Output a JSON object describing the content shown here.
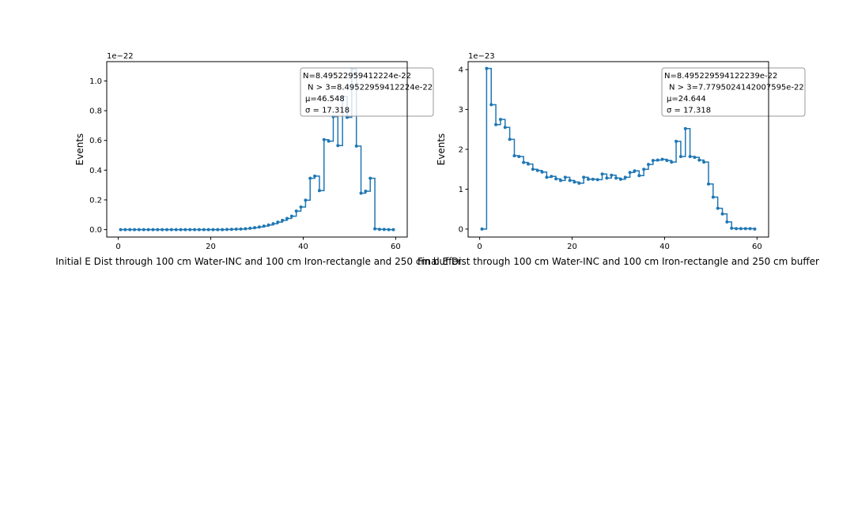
{
  "chart_data": [
    {
      "type": "line",
      "step": "post",
      "xlabel": "Initial E Dist through 100 cm Water-INC and 100 cm Iron-rectangle and 250 cm buffer",
      "ylabel": "Events",
      "offset_text": "1e−22",
      "xlim": [
        -2.5,
        62.5
      ],
      "ylim": [
        -0.05,
        1.13
      ],
      "xticks": [
        0,
        20,
        40,
        60
      ],
      "yticks": [
        0.0,
        0.2,
        0.4,
        0.6,
        0.8,
        1.0
      ],
      "ytick_labels": [
        "0.0",
        "0.2",
        "0.4",
        "0.6",
        "0.8",
        "1.0"
      ],
      "stats": [
        "N=8.49522959412224e-22",
        "N > 3=8.49522959412224e-22",
        "μ=46.548",
        "σ = 17.318"
      ],
      "color": "#1f77b4",
      "x": [
        0.5,
        1.5,
        2.5,
        3.5,
        4.5,
        5.5,
        6.5,
        7.5,
        8.5,
        9.5,
        10.5,
        11.5,
        12.5,
        13.5,
        14.5,
        15.5,
        16.5,
        17.5,
        18.5,
        19.5,
        20.5,
        21.5,
        22.5,
        23.5,
        24.5,
        25.5,
        26.5,
        27.5,
        28.5,
        29.5,
        30.5,
        31.5,
        32.5,
        33.5,
        34.5,
        35.5,
        36.5,
        37.5,
        38.5,
        39.5,
        40.5,
        41.5,
        42.5,
        43.5,
        44.5,
        45.5,
        46.5,
        47.5,
        48.5,
        49.5,
        50.5,
        51.5,
        52.5,
        53.5,
        54.5,
        55.5,
        56.5,
        57.5,
        58.5,
        59.5
      ],
      "values": [
        0,
        0,
        0,
        0,
        0,
        0,
        0,
        0,
        0,
        0,
        0,
        0,
        0,
        0,
        0,
        0,
        0,
        0,
        0,
        0,
        0,
        0,
        0,
        0.001,
        0.002,
        0.003,
        0.004,
        0.006,
        0.009,
        0.013,
        0.018,
        0.024,
        0.031,
        0.04,
        0.05,
        0.062,
        0.075,
        0.09,
        0.125,
        0.152,
        0.198,
        0.345,
        0.36,
        0.262,
        0.605,
        0.595,
        0.76,
        0.565,
        0.895,
        0.755,
        1.08,
        0.562,
        0.245,
        0.258,
        0.345,
        0.005,
        0.002,
        0.001,
        0,
        0
      ]
    },
    {
      "type": "line",
      "step": "post",
      "xlabel": "Final E Dist through 100 cm Water-INC and 100 cm Iron-rectangle and 250 cm buffer",
      "ylabel": "Events",
      "offset_text": "1e−23",
      "xlim": [
        -2.5,
        62.5
      ],
      "ylim": [
        -0.2,
        4.2
      ],
      "xticks": [
        0,
        20,
        40,
        60
      ],
      "yticks": [
        0,
        1,
        2,
        3,
        4
      ],
      "ytick_labels": [
        "0",
        "1",
        "2",
        "3",
        "4"
      ],
      "stats": [
        "N=8.495229594122239e-22",
        "N > 3=7.779502414200759​5e-22",
        "μ=24.644",
        "σ = 17.318"
      ],
      "color": "#1f77b4",
      "x": [
        0.5,
        1.5,
        2.5,
        3.5,
        4.5,
        5.5,
        6.5,
        7.5,
        8.5,
        9.5,
        10.5,
        11.5,
        12.5,
        13.5,
        14.5,
        15.5,
        16.5,
        17.5,
        18.5,
        19.5,
        20.5,
        21.5,
        22.5,
        23.5,
        24.5,
        25.5,
        26.5,
        27.5,
        28.5,
        29.5,
        30.5,
        31.5,
        32.5,
        33.5,
        34.5,
        35.5,
        36.5,
        37.5,
        38.5,
        39.5,
        40.5,
        41.5,
        42.5,
        43.5,
        44.5,
        45.5,
        46.5,
        47.5,
        48.5,
        49.5,
        50.5,
        51.5,
        52.5,
        53.5,
        54.5,
        55.5,
        56.5,
        57.5,
        58.5,
        59.5
      ],
      "values": [
        0,
        4.03,
        3.12,
        2.62,
        2.75,
        2.55,
        2.25,
        1.84,
        1.82,
        1.67,
        1.63,
        1.5,
        1.47,
        1.43,
        1.3,
        1.32,
        1.26,
        1.22,
        1.3,
        1.22,
        1.18,
        1.15,
        1.3,
        1.25,
        1.25,
        1.24,
        1.38,
        1.28,
        1.35,
        1.28,
        1.25,
        1.3,
        1.42,
        1.46,
        1.34,
        1.5,
        1.62,
        1.72,
        1.73,
        1.75,
        1.72,
        1.68,
        2.2,
        1.82,
        2.52,
        1.82,
        1.8,
        1.73,
        1.68,
        1.13,
        0.8,
        0.52,
        0.38,
        0.18,
        0.02,
        0.01,
        0.01,
        0.01,
        0.01,
        0
      ]
    }
  ]
}
